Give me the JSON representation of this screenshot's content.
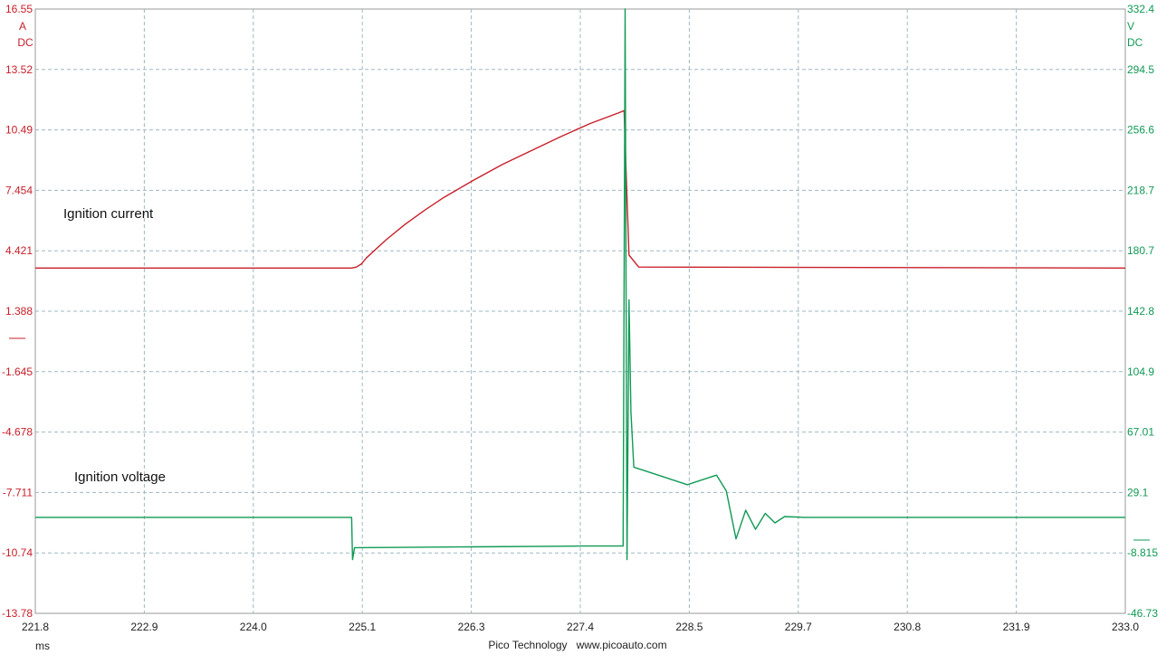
{
  "chart_data": {
    "type": "line",
    "footer": "Pico Technology   www.picoauto.com",
    "x_axis": {
      "unit": "ms",
      "range": [
        221.8,
        233.0
      ],
      "ticks": [
        "221.8",
        "222.9",
        "224.0",
        "225.1",
        "226.3",
        "227.4",
        "228.5",
        "229.7",
        "230.8",
        "231.9",
        "233.0"
      ]
    },
    "y_left": {
      "unit": "A",
      "coupling": "DC",
      "color": "#c8202a",
      "range": [
        -13.78,
        16.55
      ],
      "ticks": [
        "16.55",
        "13.52",
        "10.49",
        "7.454",
        "4.421",
        "1.388",
        "-1.645",
        "-4.678",
        "-7.711",
        "-10.74",
        "-13.78"
      ]
    },
    "y_right": {
      "unit": "V",
      "coupling": "DC",
      "color": "#119a55",
      "range": [
        -46.73,
        332.4
      ],
      "ticks": [
        "332.4",
        "294.5",
        "256.6",
        "218.7",
        "180.7",
        "142.8",
        "104.9",
        "67.01",
        "29.1",
        "-8.815",
        "-46.73"
      ]
    },
    "grid": true,
    "series": [
      {
        "name": "Ignition current",
        "axis": "left",
        "color": "#c8202a",
        "points": [
          [
            221.8,
            3.55
          ],
          [
            225.05,
            3.55
          ],
          [
            225.1,
            3.6
          ],
          [
            225.15,
            3.75
          ],
          [
            225.2,
            4.05
          ],
          [
            225.4,
            4.95
          ],
          [
            225.6,
            5.75
          ],
          [
            225.8,
            6.45
          ],
          [
            226.0,
            7.1
          ],
          [
            226.3,
            7.95
          ],
          [
            226.6,
            8.75
          ],
          [
            226.9,
            9.45
          ],
          [
            227.2,
            10.15
          ],
          [
            227.5,
            10.8
          ],
          [
            227.8,
            11.35
          ],
          [
            227.85,
            11.45
          ],
          [
            227.87,
            8.5
          ],
          [
            227.9,
            4.2
          ],
          [
            228.0,
            3.6
          ],
          [
            233.0,
            3.55
          ]
        ]
      },
      {
        "name": "Ignition voltage",
        "axis": "right",
        "color": "#119a55",
        "points": [
          [
            221.8,
            13.5
          ],
          [
            225.05,
            13.5
          ],
          [
            225.06,
            -13.0
          ],
          [
            225.08,
            -5.5
          ],
          [
            225.1,
            -5.5
          ],
          [
            226.3,
            -5.0
          ],
          [
            227.4,
            -4.5
          ],
          [
            227.84,
            -4.5
          ],
          [
            227.86,
            332.4
          ],
          [
            227.88,
            -13.0
          ],
          [
            227.9,
            150.0
          ],
          [
            227.92,
            80.0
          ],
          [
            227.95,
            45.0
          ],
          [
            228.2,
            40.0
          ],
          [
            228.5,
            34.0
          ],
          [
            228.8,
            40.0
          ],
          [
            228.9,
            30.0
          ],
          [
            229.0,
            0.0
          ],
          [
            229.1,
            18.0
          ],
          [
            229.2,
            6.0
          ],
          [
            229.3,
            16.0
          ],
          [
            229.4,
            10.0
          ],
          [
            229.5,
            14.0
          ],
          [
            229.7,
            13.5
          ],
          [
            233.0,
            13.5
          ]
        ]
      }
    ]
  }
}
